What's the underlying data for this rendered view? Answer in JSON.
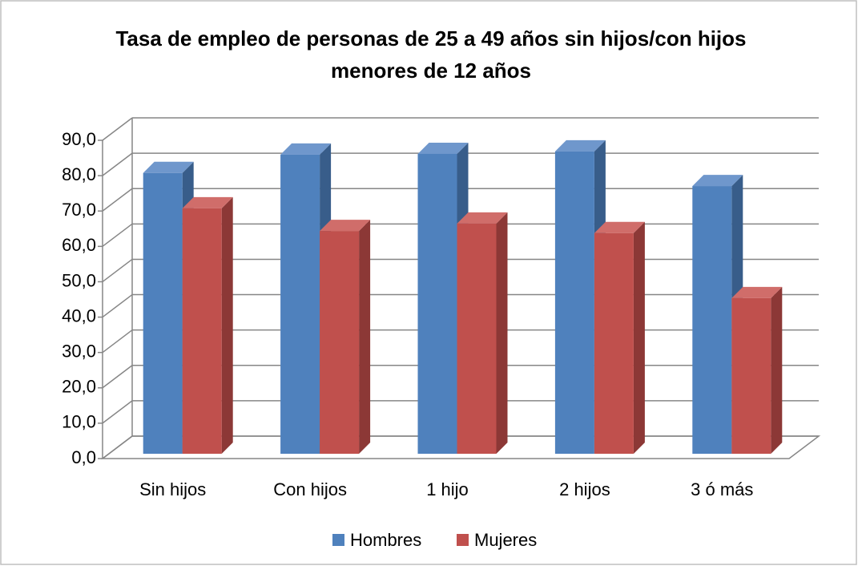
{
  "chart_data": {
    "type": "bar3d",
    "title": "Tasa de empleo de personas de 25 a 49 años sin hijos/con hijos menores de 12 años",
    "categories": [
      "Sin hijos",
      "Con hijos",
      "1 hijo",
      "2 hijos",
      "3 ó más"
    ],
    "series": [
      {
        "name": "Hombres",
        "color": "#4f81bd",
        "side": "#385d8a",
        "top": "#6f97cc",
        "values": [
          79.4,
          84.6,
          84.8,
          85.5,
          75.7
        ]
      },
      {
        "name": "Mujeres",
        "color": "#c0504d",
        "side": "#8c3836",
        "top": "#d06d6a",
        "values": [
          69.4,
          63.0,
          65.1,
          62.4,
          44.0
        ]
      }
    ],
    "ylim": [
      0,
      90
    ],
    "yticks": [
      {
        "value": 0,
        "label": "0,0"
      },
      {
        "value": 10,
        "label": "10,0"
      },
      {
        "value": 20,
        "label": "20,0"
      },
      {
        "value": 30,
        "label": "30,0"
      },
      {
        "value": 40,
        "label": "40,0"
      },
      {
        "value": 50,
        "label": "50,0"
      },
      {
        "value": 60,
        "label": "60,0"
      },
      {
        "value": 70,
        "label": "70,0"
      },
      {
        "value": 80,
        "label": "80,0"
      },
      {
        "value": 90,
        "label": "90,0"
      }
    ],
    "grid": true,
    "legend": "bottom"
  }
}
